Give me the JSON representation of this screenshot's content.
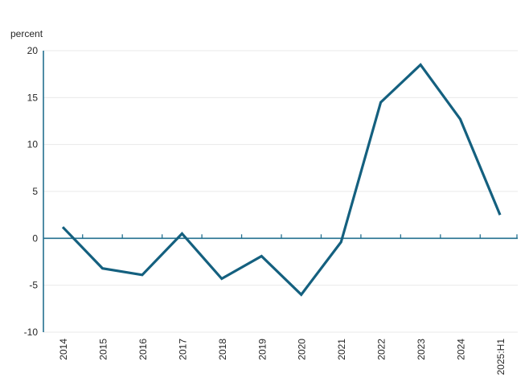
{
  "labels": {
    "unit": "percent"
  },
  "colors": {
    "background": "#ffffff",
    "line": "#14607f",
    "axis": "#23708f",
    "grid": "#e9e9e9",
    "text": "#262626"
  },
  "chart_data": {
    "type": "line",
    "title": "",
    "xlabel": "",
    "ylabel": "percent",
    "categories": [
      "2014",
      "2015",
      "2016",
      "2017",
      "2018",
      "2019",
      "2020",
      "2021",
      "2022",
      "2023",
      "2024",
      "2025:H1"
    ],
    "values": [
      1.2,
      -3.2,
      -3.9,
      0.5,
      -4.3,
      -1.9,
      -6.0,
      -0.4,
      14.5,
      18.5,
      12.7,
      2.5
    ],
    "ylim": [
      -10,
      20
    ],
    "yticks": [
      20,
      15,
      10,
      5,
      0,
      -5,
      -10
    ],
    "grid": "horizontal",
    "legend": "none",
    "zero_axis_ticks": "between-categories"
  }
}
